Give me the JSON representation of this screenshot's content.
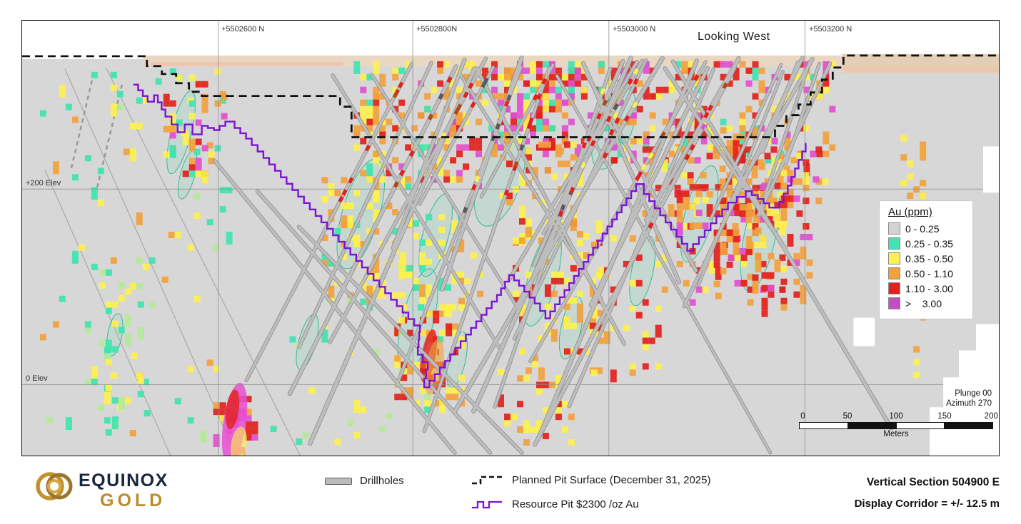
{
  "title": {
    "looking_west": "Looking West"
  },
  "grid": {
    "northings": [
      "+5502600 N",
      "+5502800N",
      "+5503000 N",
      "+5503200 N"
    ],
    "elevations": [
      "+200 Elev",
      "0 Elev"
    ]
  },
  "legend": {
    "title": "Au (ppm)",
    "items": [
      {
        "label": "0 - 0.25",
        "color": "#d3d3d3"
      },
      {
        "label": "0.25 - 0.35",
        "color": "#3fe4b0"
      },
      {
        "label": "0.35 - 0.50",
        "color": "#fdf14e"
      },
      {
        "label": "0.50 - 1.10",
        "color": "#f2a13d"
      },
      {
        "label": "1.10 - 3.00",
        "color": "#e2211c"
      },
      {
        "label": ">    3.00",
        "color": "#c24ec2"
      }
    ]
  },
  "scalebar": {
    "ticks": [
      "0",
      "50",
      "100",
      "150",
      "200"
    ],
    "unit": "Meters"
  },
  "orientation": {
    "plunge": "Plunge 00",
    "azimuth": "Azimuth 270"
  },
  "map_legend": {
    "drillholes": "Drillholes",
    "planned_pit": "Planned Pit Surface (December 31, 2025)",
    "resource_pit": "Resource Pit $2300 /oz Au"
  },
  "brand": {
    "name_top": "EQUINOX",
    "name_bottom": "GOLD"
  },
  "section_info": {
    "section": "Vertical Section 504900 E",
    "corridor": "Display Corridor = +/- 12.5 m"
  }
}
